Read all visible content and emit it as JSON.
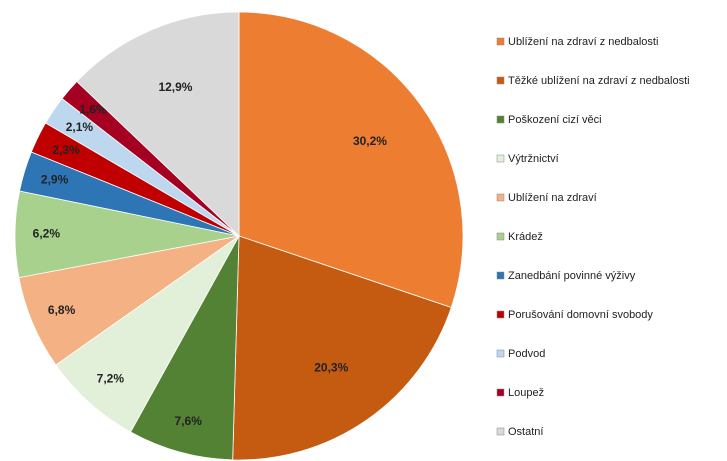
{
  "chart_data": {
    "type": "pie",
    "categories": [
      "Ublížení na zdraví z nedbalosti",
      "Těžké ublížení na zdraví z nedbalosti",
      "Poškození cizí věci",
      "Výtržnictví",
      "Ublížení na zdraví",
      "Krádež",
      "Zanedbání povinné výživy",
      "Porušování domovní svobody",
      "Podvod",
      "Loupež",
      "Ostatní"
    ],
    "values": [
      30.2,
      20.3,
      7.6,
      7.2,
      6.8,
      6.2,
      2.9,
      2.3,
      2.1,
      1.6,
      12.9
    ],
    "value_labels": [
      "30,2%",
      "20,3%",
      "7,6%",
      "7,2%",
      "6,8%",
      "6,2%",
      "2,9%",
      "2,3%",
      "2,1%",
      "1,6%",
      "12,9%"
    ],
    "colors": [
      "#ED7D31",
      "#C55A11",
      "#548235",
      "#E2EFD9",
      "#F4B183",
      "#A9D18E",
      "#2E75B6",
      "#C00000",
      "#BDD7EE",
      "#A50021",
      "#D9D9D9"
    ],
    "legend": "right"
  }
}
